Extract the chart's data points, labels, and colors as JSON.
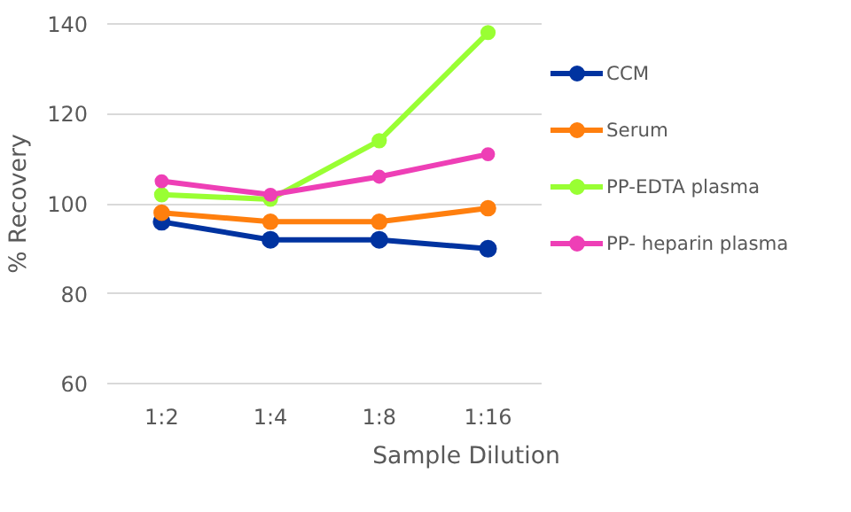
{
  "chart_data": {
    "type": "line",
    "xlabel": "Sample Dilution",
    "ylabel": "% Recovery",
    "categories": [
      "1:2",
      "1:4",
      "1:8",
      "1:16"
    ],
    "series": [
      {
        "name": "CCM",
        "color": "#0033a0",
        "values": [
          96,
          92,
          92,
          90
        ]
      },
      {
        "name": "Serum",
        "color": "#ff7f0e",
        "values": [
          98,
          96,
          96,
          99
        ]
      },
      {
        "name": "PP-EDTA plasma",
        "color": "#99ff33",
        "values": [
          102,
          101,
          114,
          138
        ]
      },
      {
        "name": "PP- heparin plasma",
        "color": "#ee3fb6",
        "values": [
          105,
          102,
          106,
          111
        ]
      }
    ],
    "ylim": [
      60,
      140
    ],
    "yticks": [
      60,
      80,
      100,
      120,
      140
    ],
    "grid": "y",
    "legend": "right",
    "marker": "circle",
    "line_style": "solid"
  }
}
